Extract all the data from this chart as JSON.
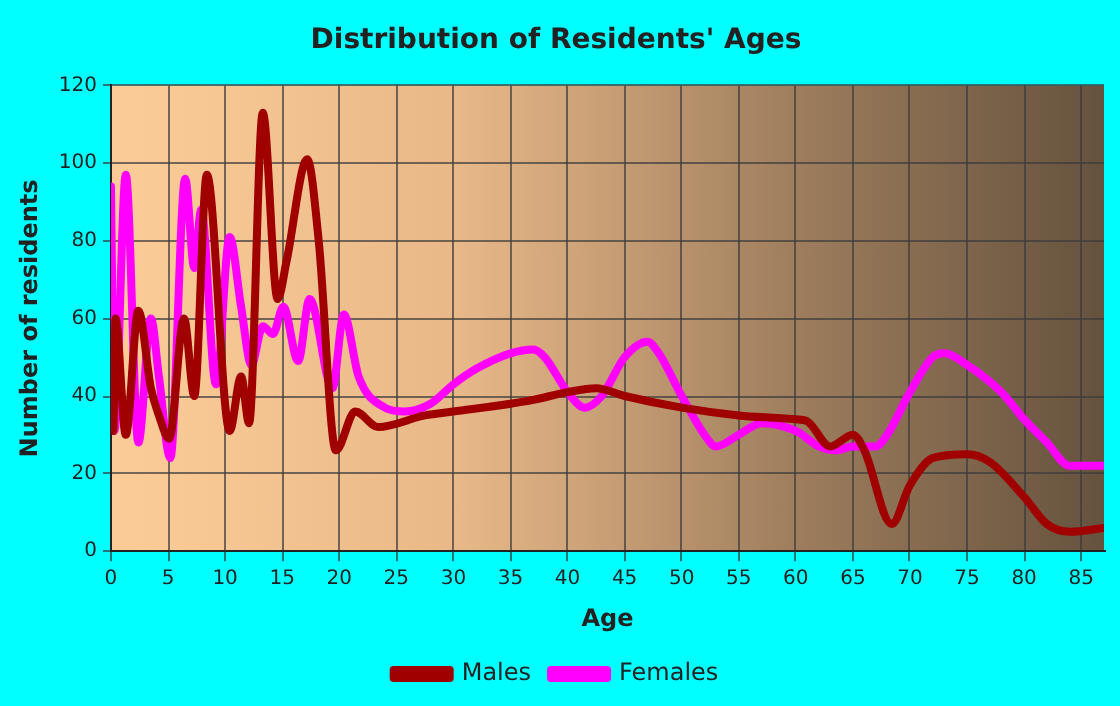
{
  "chart_data": {
    "type": "line",
    "title": "Distribution of Residents' Ages",
    "xlabel": "Age",
    "ylabel": "Number of residents",
    "xlim": [
      0,
      87
    ],
    "xticks": [
      0,
      5,
      10,
      15,
      20,
      25,
      30,
      35,
      40,
      45,
      50,
      55,
      60,
      65,
      70,
      75,
      80,
      85
    ],
    "ylim": [
      0,
      120
    ],
    "yticks": [
      0,
      20,
      40,
      60,
      80,
      100,
      120
    ],
    "grid": true,
    "legend": "bottom",
    "marker": "none",
    "line_style": "solid",
    "series": [
      {
        "name": "Males",
        "color": "#a00000",
        "x": [
          0,
          0.2,
          0.4,
          1.3,
          2.4,
          3.5,
          4.2,
          5.1,
          6.4,
          7.3,
          8.4,
          10.4,
          11.4,
          12.1,
          13.3,
          14.6,
          15.4,
          17.2,
          18.2,
          19.7,
          21.4,
          23.4,
          27.5,
          30,
          35,
          37,
          40,
          42.5,
          45,
          50,
          55,
          60,
          61,
          63,
          65,
          66,
          68.4,
          70,
          72,
          75,
          77,
          80,
          82,
          84,
          87
        ],
        "values": [
          49,
          31,
          60,
          30,
          62,
          42,
          35,
          29,
          60,
          40,
          97,
          31,
          45,
          33,
          113,
          65,
          75,
          101,
          80,
          26,
          36,
          32,
          35,
          36,
          38,
          39,
          41,
          42,
          40,
          37,
          35,
          34,
          33.5,
          27,
          30,
          26,
          7,
          17,
          24,
          25,
          23,
          14,
          7,
          5,
          6
        ]
      },
      {
        "name": "Females",
        "color": "#ff00ff",
        "x": [
          0,
          0.3,
          1.3,
          2.4,
          3.5,
          4.2,
          5.2,
          6.5,
          7.3,
          7.9,
          9.2,
          10.4,
          11.4,
          12.3,
          13.3,
          14.2,
          15.1,
          16.4,
          17.4,
          19.4,
          20.4,
          21.7,
          24,
          25.7,
          28,
          30,
          32,
          35,
          37,
          38,
          40,
          41.5,
          43,
          45,
          47,
          48,
          50,
          52,
          53,
          55,
          57,
          60,
          62,
          63.5,
          65,
          67,
          68,
          70,
          72,
          73,
          75,
          78,
          80,
          82,
          84,
          87
        ],
        "values": [
          94,
          31,
          97,
          28,
          60,
          45,
          24,
          96,
          73,
          88,
          43,
          81,
          63,
          48,
          58,
          56,
          63,
          49,
          65,
          42,
          61,
          45,
          37,
          36,
          38,
          43,
          47,
          51,
          52,
          50,
          41,
          37,
          40,
          50,
          54,
          51,
          40,
          30,
          27,
          30,
          33,
          31,
          27,
          26,
          27,
          27,
          30,
          41,
          50,
          51,
          48,
          41,
          34,
          28,
          22,
          22
        ]
      }
    ]
  }
}
